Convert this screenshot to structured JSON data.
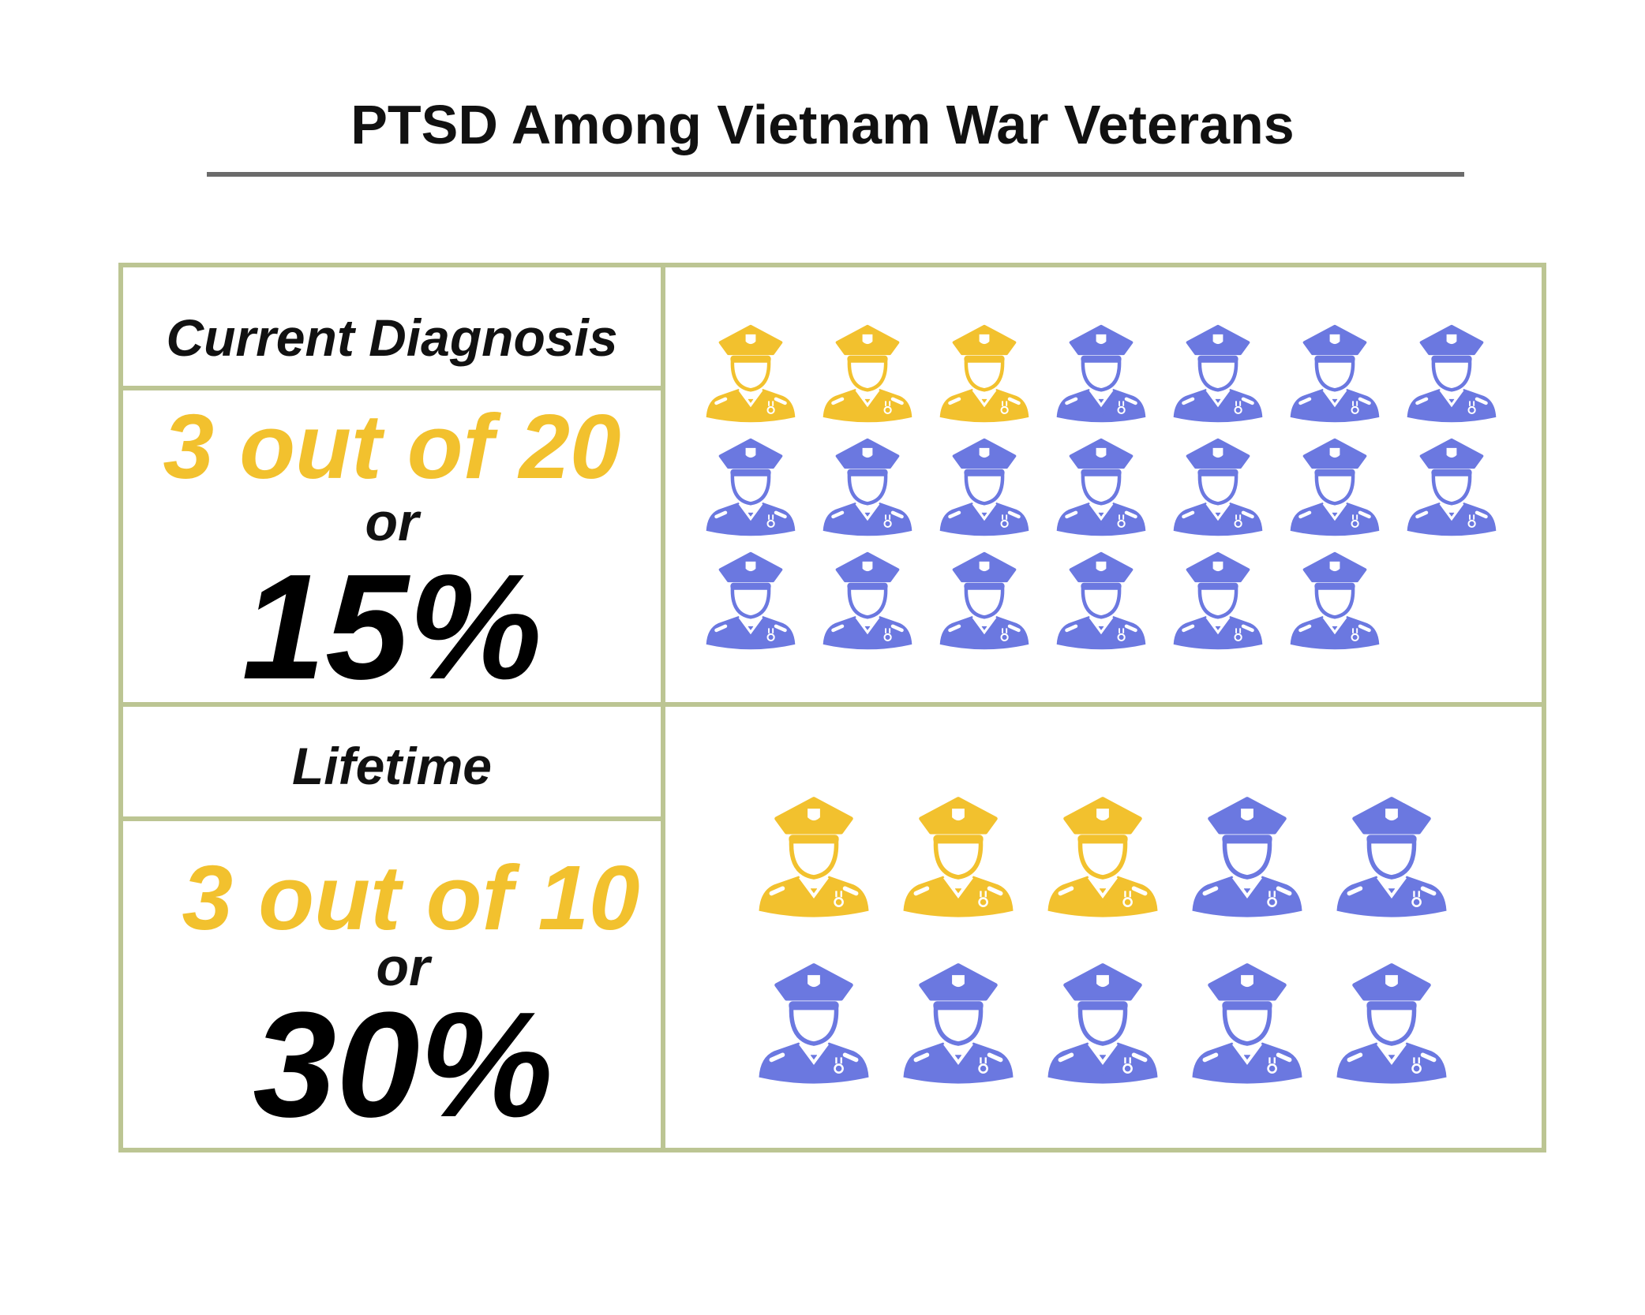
{
  "title": "PTSD Among Vietnam War Veterans",
  "colors": {
    "highlight": "#f2c12e",
    "base": "#6b78e0",
    "border": "#bcc593",
    "rule": "#6b6b6b"
  },
  "icon": "soldier-icon",
  "current": {
    "label": "Current Diagnosis",
    "fraction": "3 out of 20",
    "or": "or",
    "percent": "15%",
    "highlighted": 3,
    "total": 20
  },
  "lifetime": {
    "label": "Lifetime",
    "fraction": "3 out of 10",
    "or": "or",
    "percent": "30%",
    "highlighted": 3,
    "total": 10
  }
}
